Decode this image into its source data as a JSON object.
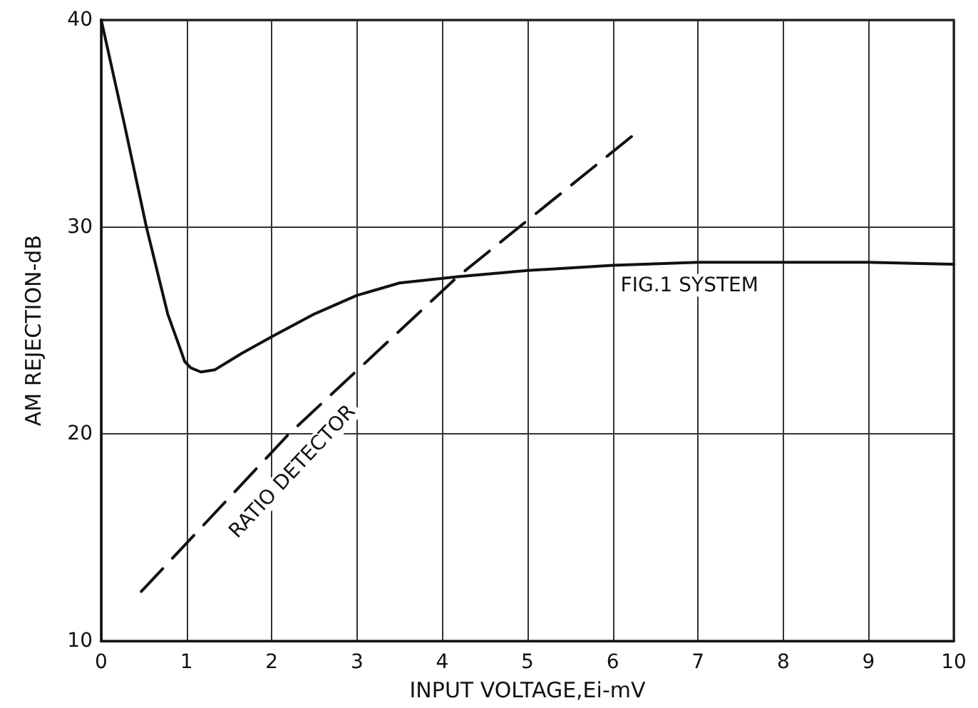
{
  "chart_data": {
    "type": "line",
    "xlabel": "INPUT VOLTAGE,Ei-mV",
    "ylabel": "AM REJECTION-dB",
    "xlim": [
      0,
      10
    ],
    "xticks": [
      0,
      1,
      2,
      3,
      4,
      5,
      6,
      7,
      8,
      9,
      10
    ],
    "ylim": [
      10,
      40
    ],
    "yticks": [
      10,
      20,
      30,
      40
    ],
    "grid": true,
    "marker": "none",
    "series": [
      {
        "name": "FIG.1 SYSTEM",
        "color": "#111111",
        "line_style": "solid",
        "x": [
          0,
          0.27,
          0.53,
          0.78,
          0.92,
          0.98,
          1.05,
          1.17,
          1.33,
          1.65,
          2,
          2.5,
          3,
          3.5,
          4.18,
          5,
          6,
          7,
          8,
          9,
          10
        ],
        "values": [
          40,
          35,
          30,
          25.8,
          24.2,
          23.5,
          23.2,
          23,
          23.1,
          23.9,
          24.7,
          25.8,
          26.7,
          27.3,
          27.6,
          27.9,
          28.15,
          28.3,
          28.3,
          28.3,
          28.2
        ]
      },
      {
        "name": "RATIO DETECTOR",
        "color": "#111111",
        "line_style": "dashed",
        "x": [
          0.47,
          2.2,
          4.18,
          6.26
        ],
        "values": [
          12.4,
          20,
          27.6,
          34.5
        ]
      }
    ]
  }
}
